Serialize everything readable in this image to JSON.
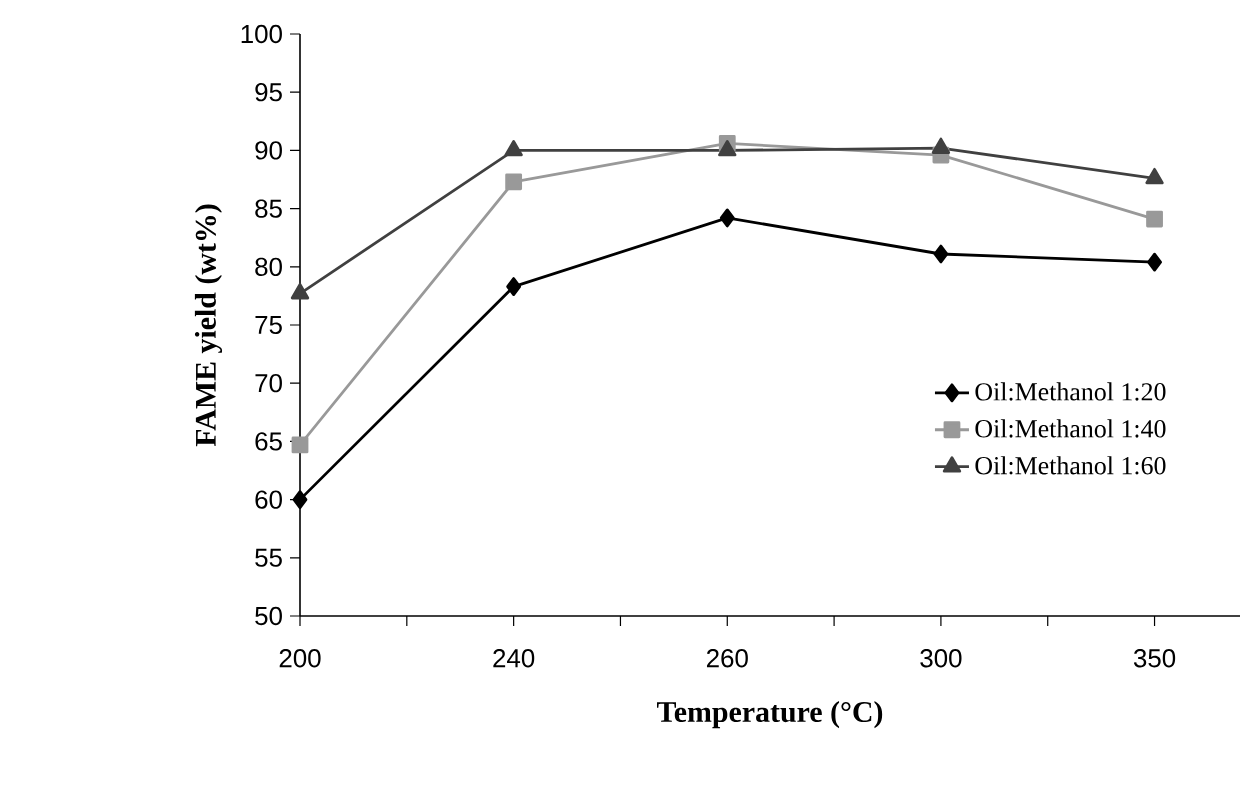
{
  "chart_data": {
    "type": "line",
    "xlabel": "Temperature (°C)",
    "ylabel": "FAME yield (wt%)",
    "categories": [
      "200",
      "240",
      "260",
      "300",
      "350"
    ],
    "series": [
      {
        "name": "Oil:Methanol 1:20",
        "color": "#000000",
        "marker": "diamond",
        "values": [
          60.0,
          78.3,
          84.2,
          81.1,
          80.4
        ]
      },
      {
        "name": "Oil:Methanol 1:40",
        "color": "#999999",
        "marker": "square",
        "values": [
          64.7,
          87.3,
          90.6,
          89.6,
          84.1
        ]
      },
      {
        "name": "Oil:Methanol 1:60",
        "color": "#404040",
        "marker": "triangle",
        "values": [
          77.7,
          90.0,
          90.0,
          90.2,
          87.6
        ]
      }
    ],
    "ylim": [
      50,
      100
    ],
    "yticks": [
      50,
      55,
      60,
      65,
      70,
      75,
      80,
      85,
      90,
      95,
      100
    ],
    "grid": false,
    "legend": "right",
    "line_style": "solid"
  }
}
